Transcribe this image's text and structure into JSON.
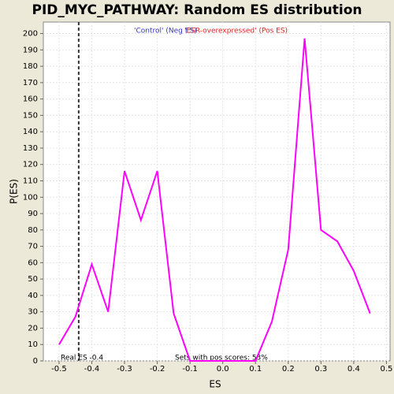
{
  "chart_data": {
    "type": "line",
    "title": "PID_MYC_PATHWAY: Random ES distribution",
    "x_label": "ES",
    "y_label": "P(ES)",
    "legend_texts": [
      {
        "text": "'Control' (Neg ES)",
        "color": "#3333cc"
      },
      {
        "text": "'ESR-overexpressed' (Pos ES)",
        "color": "#dd2222"
      }
    ],
    "x": [
      -0.5,
      -0.45,
      -0.4,
      -0.35,
      -0.3,
      -0.25,
      -0.2,
      -0.15,
      -0.1,
      -0.05,
      0,
      0.05,
      0.1,
      0.15,
      0.2,
      0.25,
      0.3,
      0.35,
      0.4,
      0.45
    ],
    "series": [
      {
        "color": "#ff00ff",
        "values": [
          10,
          27,
          59,
          30,
          116,
          86,
          116,
          29,
          0,
          0,
          0,
          0,
          0,
          24,
          68,
          197,
          80,
          73,
          55,
          29
        ]
      }
    ],
    "xlim": [
      -0.548,
      0.511
    ],
    "ylim": [
      0,
      207
    ],
    "xticks": [
      -0.5,
      -0.4,
      -0.3,
      -0.2,
      -0.1,
      {
        "value": 0,
        "label": "0.0"
      },
      0.1,
      0.2,
      0.3,
      0.4,
      0.5
    ],
    "yticks": [
      0,
      10,
      20,
      30,
      40,
      50,
      60,
      70,
      80,
      90,
      100,
      110,
      120,
      130,
      140,
      150,
      160,
      170,
      180,
      190,
      200
    ],
    "grid": true,
    "real_es": {
      "value": -0.44,
      "label": "Real ES -0.4"
    },
    "pos_scores_text": "Sets with pos scores: 53%"
  }
}
